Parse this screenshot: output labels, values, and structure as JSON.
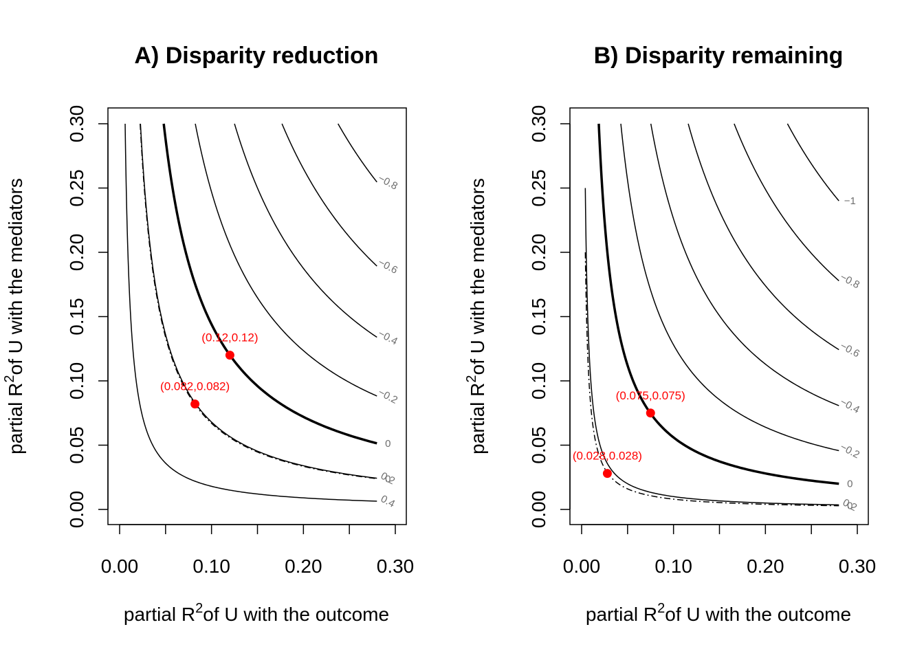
{
  "chart_data": [
    {
      "type": "contour",
      "title": "A) Disparity reduction",
      "xlabel": {
        "prefix": "partial R",
        "sup": "2",
        "suffix": "of U with the outcome"
      },
      "ylabel": {
        "prefix": "partial R",
        "sup": "2",
        "suffix": "of U with the mediators"
      },
      "xlim": [
        0,
        0.3
      ],
      "ylim": [
        0,
        0.3
      ],
      "x_ticks": [
        "0.00",
        "0.10",
        "0.20",
        "0.30"
      ],
      "y_ticks": [
        "0.00",
        "0.05",
        "0.10",
        "0.15",
        "0.20",
        "0.25",
        "0.30"
      ],
      "contours": [
        {
          "level": "0.4",
          "label": "0.4",
          "style": "solid",
          "k": 0.0018,
          "label_side": "right"
        },
        {
          "level": "0.2",
          "label": "0.2",
          "style": "solid",
          "k": 0.0068,
          "label_side": "right"
        },
        {
          "level": "0",
          "label": "0",
          "style": "bold",
          "k": 0.0144,
          "label_side": "right"
        },
        {
          "level": "-0.2",
          "label": "−0.2",
          "style": "solid",
          "k": 0.0247,
          "label_side": "right"
        },
        {
          "level": "-0.4",
          "label": "−0.4",
          "style": "solid",
          "k": 0.0375,
          "label_side": "right"
        },
        {
          "level": "-0.6",
          "label": "−0.6",
          "style": "solid",
          "k": 0.053,
          "label_side": "right"
        },
        {
          "level": "-0.8",
          "label": "−0.8",
          "style": "solid",
          "k": 0.0713,
          "label_side": "right"
        },
        {
          "level": "0",
          "label": "0",
          "style": "dotdash",
          "k": 0.0067,
          "label_side": "right"
        }
      ],
      "points": [
        {
          "x": 0.12,
          "y": 0.12,
          "label": "(0.12,0.12)"
        },
        {
          "x": 0.082,
          "y": 0.082,
          "label": "(0.082,0.082)"
        }
      ]
    },
    {
      "type": "contour",
      "title": "B) Disparity remaining",
      "xlabel": {
        "prefix": "partial R",
        "sup": "2",
        "suffix": "of U with the outcome"
      },
      "ylabel": {
        "prefix": "partial R",
        "sup": "2",
        "suffix": "of U with the mediators"
      },
      "xlim": [
        0,
        0.3
      ],
      "ylim": [
        0,
        0.3
      ],
      "x_ticks": [
        "0.00",
        "0.10",
        "0.20",
        "0.30"
      ],
      "y_ticks": [
        "0.00",
        "0.05",
        "0.10",
        "0.15",
        "0.20",
        "0.25",
        "0.30"
      ],
      "contours": [
        {
          "level": "0.2",
          "label": "0.2",
          "style": "solid",
          "k": 0.001,
          "label_side": "right"
        },
        {
          "level": "0",
          "label": "0",
          "style": "bold",
          "k": 0.0056,
          "label_side": "right"
        },
        {
          "level": "-0.2",
          "label": "−0.2",
          "style": "solid",
          "k": 0.0128,
          "label_side": "right"
        },
        {
          "level": "-0.4",
          "label": "−0.4",
          "style": "solid",
          "k": 0.0226,
          "label_side": "right"
        },
        {
          "level": "-0.6",
          "label": "−0.6",
          "style": "solid",
          "k": 0.0348,
          "label_side": "right"
        },
        {
          "level": "-0.8",
          "label": "−0.8",
          "style": "solid",
          "k": 0.0498,
          "label_side": "right"
        },
        {
          "level": "-1",
          "label": "−1",
          "style": "solid",
          "k": 0.0672,
          "label_side": "right"
        },
        {
          "level": "0",
          "label": "0",
          "style": "dotdash",
          "k": 0.0008,
          "label_side": "right"
        }
      ],
      "points": [
        {
          "x": 0.075,
          "y": 0.075,
          "label": "(0.075,0.075)"
        },
        {
          "x": 0.028,
          "y": 0.028,
          "label": "(0.028,0.028)"
        }
      ]
    }
  ],
  "colors": {
    "point": "#ff0000",
    "contour_label": "#6e6e6e",
    "line": "#000000"
  }
}
